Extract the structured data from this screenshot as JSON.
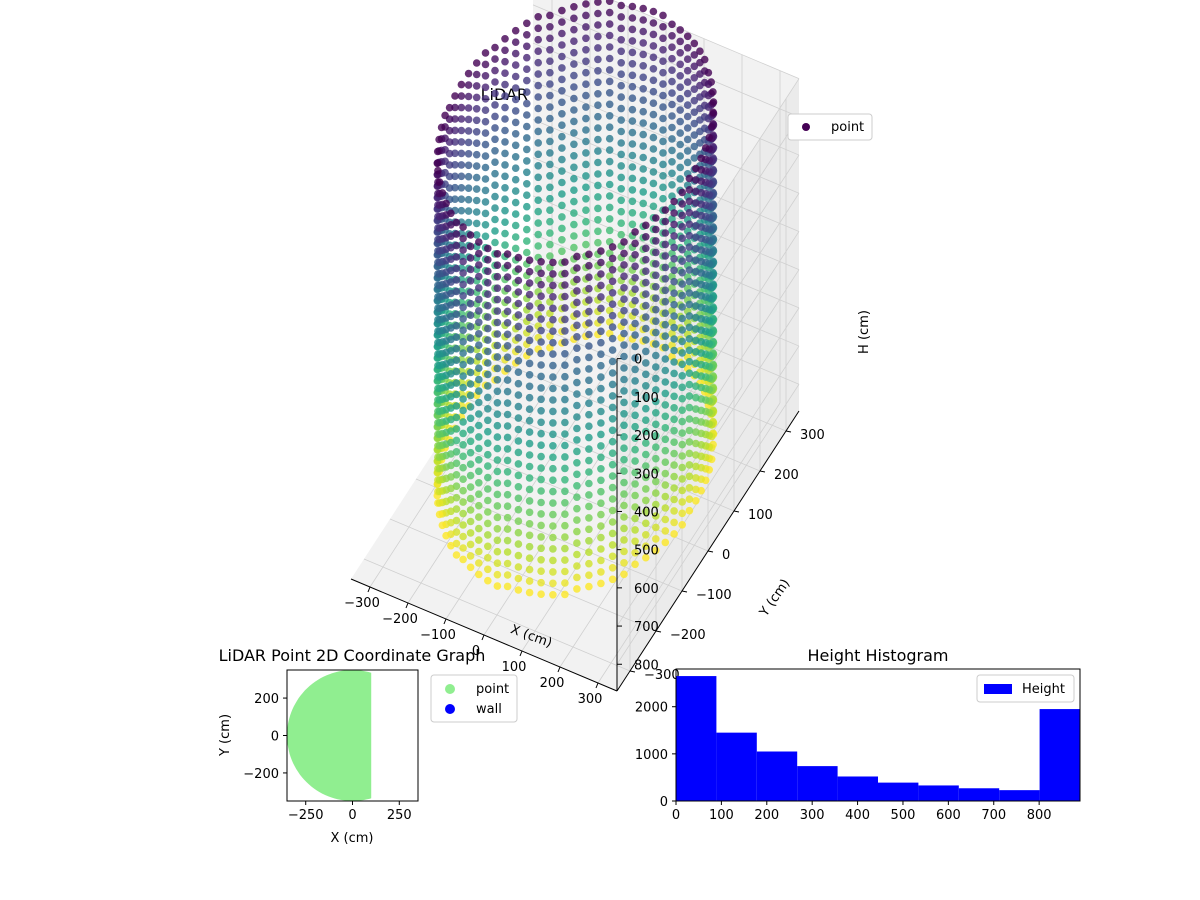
{
  "chart_data": [
    {
      "id": "scatter3d",
      "type": "scatter",
      "projection": "3d",
      "title": "LiDAR Point 3D Coordinate Graph",
      "xlabel": "X (cm)",
      "ylabel": "Y (cm)",
      "zlabel": "H (cm)",
      "xticks": [
        -300,
        -200,
        -100,
        0,
        100,
        200,
        300
      ],
      "yticks": [
        -300,
        -200,
        -100,
        0,
        100,
        200,
        300
      ],
      "zticks": [
        0,
        100,
        200,
        300,
        400,
        500,
        600,
        700,
        800
      ],
      "xlim": [
        -350,
        350
      ],
      "ylim": [
        -350,
        350
      ],
      "zlim": [
        0,
        870
      ],
      "z_inverted": true,
      "colormap": "viridis",
      "color_by": "H (cm)",
      "grid": true,
      "legend_position": "top-right",
      "series": [
        {
          "name": "point",
          "color": "#440154",
          "shape": "cylinder",
          "radius_cm": 300,
          "h_range": [
            0,
            870
          ],
          "angle_step_deg": 5,
          "h_step_cm": 30,
          "panel_color": "#f2f2f2",
          "grid_color": "#d0d0d0"
        }
      ]
    },
    {
      "id": "scatter2d",
      "type": "scatter",
      "title": "LiDAR Point 2D Coordinate Graph",
      "xlabel": "X (cm)",
      "ylabel": "Y (cm)",
      "xticks": [
        -250,
        0,
        250
      ],
      "yticks": [
        -200,
        0,
        200
      ],
      "xlim": [
        -350,
        350
      ],
      "ylim": [
        -350,
        350
      ],
      "legend_position": "outside-right",
      "series": [
        {
          "name": "point",
          "color": "#90ee90",
          "region": "disc clipped at x = 100",
          "radius": 350,
          "x_max": 100
        },
        {
          "name": "wall",
          "color": "#0000ff",
          "points": []
        }
      ]
    },
    {
      "id": "histogram",
      "type": "bar",
      "title": "Height Histogram",
      "xlabel": "",
      "ylabel": "",
      "bin_edges": [
        0,
        89,
        178,
        267,
        356,
        445,
        534,
        623,
        712,
        801,
        890
      ],
      "values": [
        2650,
        1450,
        1050,
        740,
        520,
        390,
        330,
        270,
        230,
        1950
      ],
      "xticks": [
        0,
        100,
        200,
        300,
        400,
        500,
        600,
        700,
        800
      ],
      "yticks": [
        0,
        1000,
        2000
      ],
      "xlim": [
        0,
        890
      ],
      "ylim": [
        0,
        2800
      ],
      "color": "#0000ff",
      "legend_position": "top-right",
      "series": [
        {
          "name": "Height",
          "color": "#0000ff"
        }
      ]
    }
  ]
}
